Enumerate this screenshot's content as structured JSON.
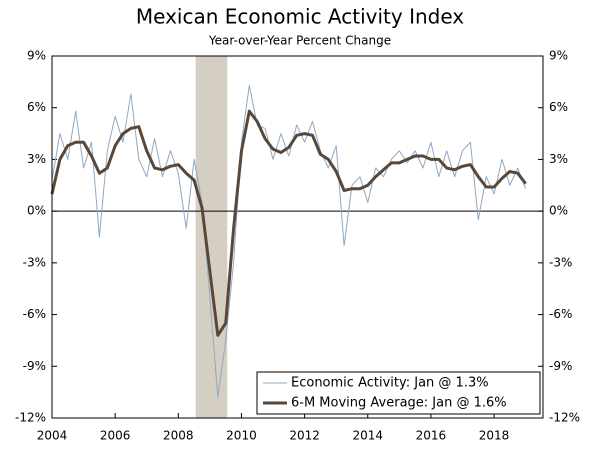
{
  "chart_data": {
    "type": "line",
    "title": "Mexican Economic Activity Index",
    "subtitle": "Year-over-Year Percent Change",
    "x": [
      2004,
      2004.25,
      2004.5,
      2004.75,
      2005,
      2005.25,
      2005.5,
      2005.75,
      2006,
      2006.25,
      2006.5,
      2006.75,
      2007,
      2007.25,
      2007.5,
      2007.75,
      2008,
      2008.25,
      2008.5,
      2008.75,
      2009,
      2009.25,
      2009.5,
      2009.75,
      2010,
      2010.25,
      2010.5,
      2010.75,
      2011,
      2011.25,
      2011.5,
      2011.75,
      2012,
      2012.25,
      2012.5,
      2012.75,
      2013,
      2013.25,
      2013.5,
      2013.75,
      2014,
      2014.25,
      2014.5,
      2014.75,
      2015,
      2015.25,
      2015.5,
      2015.75,
      2016,
      2016.25,
      2016.5,
      2016.75,
      2017,
      2017.25,
      2017.5,
      2017.75,
      2018,
      2018.25,
      2018.5,
      2018.75,
      2019
    ],
    "series": [
      {
        "name": "Economic Activity: Jan @ 1.3%",
        "color": "#8fa8c4",
        "width": 1,
        "values": [
          1.8,
          4.5,
          3.0,
          5.8,
          2.5,
          4.0,
          -1.5,
          3.5,
          5.5,
          4.0,
          6.8,
          3.0,
          2.0,
          4.2,
          2.0,
          3.5,
          2.2,
          -1.0,
          3.0,
          0.5,
          -5.0,
          -10.8,
          -7.5,
          -3.0,
          4.0,
          7.3,
          5.0,
          4.8,
          3.0,
          4.5,
          3.2,
          5.0,
          4.0,
          5.2,
          3.5,
          2.5,
          3.8,
          -2.0,
          1.5,
          2.0,
          0.5,
          2.5,
          2.0,
          3.0,
          3.5,
          2.8,
          3.5,
          2.5,
          4.0,
          2.0,
          3.5,
          2.0,
          3.5,
          4.0,
          -0.5,
          2.0,
          1.0,
          3.0,
          1.5,
          2.5,
          1.3
        ]
      },
      {
        "name": "6-M Moving Average: Jan @ 1.6%",
        "color": "#59483a",
        "width": 3,
        "values": [
          1.0,
          3.0,
          3.8,
          4.0,
          4.0,
          3.2,
          2.2,
          2.5,
          3.8,
          4.5,
          4.8,
          4.9,
          3.5,
          2.5,
          2.4,
          2.6,
          2.7,
          2.2,
          1.8,
          0.2,
          -3.5,
          -7.2,
          -6.5,
          -1.0,
          3.5,
          5.8,
          5.2,
          4.2,
          3.6,
          3.4,
          3.7,
          4.4,
          4.5,
          4.4,
          3.3,
          3.0,
          2.3,
          1.2,
          1.3,
          1.3,
          1.5,
          2.0,
          2.4,
          2.8,
          2.8,
          3.0,
          3.2,
          3.2,
          3.0,
          3.0,
          2.5,
          2.4,
          2.6,
          2.7,
          2.0,
          1.4,
          1.4,
          1.9,
          2.3,
          2.2,
          1.6
        ]
      }
    ],
    "shade": [
      2008.55,
      2009.55
    ],
    "shade_color": "#d5cfc3",
    "xlim": [
      2004,
      2019.55
    ],
    "xticks": [
      2004,
      2006,
      2008,
      2010,
      2012,
      2014,
      2016,
      2018
    ],
    "ylim": [
      -12,
      9
    ],
    "yticks": [
      {
        "value": -12,
        "label": "-12%"
      },
      {
        "value": -9,
        "label": "-9%"
      },
      {
        "value": -6,
        "label": "-6%"
      },
      {
        "value": -3,
        "label": "-3%"
      },
      {
        "value": 0,
        "label": "0%"
      },
      {
        "value": 3,
        "label": "3%"
      },
      {
        "value": 6,
        "label": "6%"
      },
      {
        "value": 9,
        "label": "9%"
      }
    ],
    "legend": "lower right"
  }
}
